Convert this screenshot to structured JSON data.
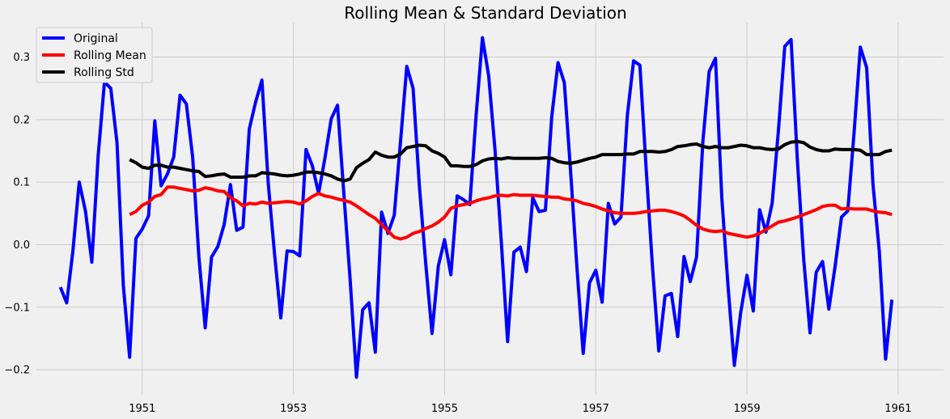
{
  "chart_data": {
    "type": "line",
    "title": "Rolling Mean & Standard Deviation",
    "xlabel": "",
    "ylabel": "",
    "x_start": 1949.9166,
    "x_step": 0.083333,
    "xlim": [
      1949.6,
      1961.6
    ],
    "ylim": [
      -0.24,
      0.355
    ],
    "xticks": [
      1951,
      1953,
      1955,
      1957,
      1959,
      1961
    ],
    "xtick_labels": [
      "1951",
      "1953",
      "1955",
      "1957",
      "1959",
      "1961"
    ],
    "yticks": [
      -0.2,
      -0.1,
      0.0,
      0.1,
      0.2,
      0.3
    ],
    "ytick_labels": [
      "−0.2",
      "−0.1",
      "0.0",
      "0.1",
      "0.2",
      "0.3"
    ],
    "grid": true,
    "legend_position": "top-left",
    "series": [
      {
        "name": "Original",
        "color": "#0000ff",
        "values": [
          -0.068,
          -0.093,
          -0.01,
          0.1,
          0.053,
          -0.028,
          0.142,
          0.26,
          0.25,
          0.163,
          -0.065,
          -0.18,
          0.01,
          0.025,
          0.046,
          0.198,
          0.094,
          0.113,
          0.14,
          0.239,
          0.225,
          0.14,
          -0.02,
          -0.133,
          -0.02,
          -0.003,
          0.032,
          0.096,
          0.023,
          0.028,
          0.185,
          0.228,
          0.263,
          0.098,
          -0.015,
          -0.117,
          -0.01,
          -0.011,
          -0.018,
          0.152,
          0.126,
          0.082,
          0.138,
          0.201,
          0.223,
          0.082,
          -0.056,
          -0.212,
          -0.104,
          -0.093,
          -0.172,
          0.052,
          0.018,
          0.047,
          0.164,
          0.285,
          0.25,
          0.093,
          -0.03,
          -0.142,
          -0.034,
          0.008,
          -0.048,
          0.078,
          0.072,
          0.064,
          0.207,
          0.331,
          0.27,
          0.152,
          0.005,
          -0.155,
          -0.012,
          -0.004,
          -0.043,
          0.075,
          0.053,
          0.055,
          0.204,
          0.291,
          0.259,
          0.118,
          -0.035,
          -0.174,
          -0.061,
          -0.041,
          -0.092,
          0.066,
          0.033,
          0.044,
          0.206,
          0.294,
          0.287,
          0.12,
          -0.035,
          -0.17,
          -0.082,
          -0.078,
          -0.147,
          -0.019,
          -0.059,
          -0.02,
          0.165,
          0.277,
          0.298,
          0.075,
          -0.068,
          -0.193,
          -0.109,
          -0.049,
          -0.106,
          0.056,
          0.02,
          0.066,
          0.183,
          0.317,
          0.328,
          0.135,
          -0.023,
          -0.141,
          -0.044,
          -0.027,
          -0.103,
          -0.034,
          0.044,
          0.054,
          0.178,
          0.316,
          0.283,
          0.097,
          -0.01,
          -0.183,
          -0.088
        ]
      },
      {
        "name": "Rolling Mean",
        "color": "#ff0000",
        "values": [
          null,
          null,
          null,
          null,
          null,
          null,
          null,
          null,
          null,
          null,
          null,
          0.048,
          0.053,
          0.063,
          0.068,
          0.077,
          0.08,
          0.092,
          0.092,
          0.09,
          0.088,
          0.086,
          0.087,
          0.091,
          0.089,
          0.086,
          0.085,
          0.075,
          0.07,
          0.062,
          0.066,
          0.065,
          0.068,
          0.066,
          0.067,
          0.068,
          0.069,
          0.068,
          0.065,
          0.07,
          0.077,
          0.082,
          0.078,
          0.076,
          0.073,
          0.071,
          0.068,
          0.062,
          0.055,
          0.048,
          0.042,
          0.032,
          0.022,
          0.012,
          0.009,
          0.012,
          0.018,
          0.021,
          0.026,
          0.03,
          0.036,
          0.044,
          0.058,
          0.062,
          0.064,
          0.066,
          0.07,
          0.073,
          0.075,
          0.078,
          0.079,
          0.078,
          0.08,
          0.079,
          0.079,
          0.079,
          0.078,
          0.077,
          0.076,
          0.076,
          0.073,
          0.072,
          0.07,
          0.066,
          0.064,
          0.061,
          0.057,
          0.054,
          0.051,
          0.05,
          0.05,
          0.05,
          0.051,
          0.053,
          0.054,
          0.055,
          0.055,
          0.053,
          0.05,
          0.046,
          0.039,
          0.031,
          0.025,
          0.022,
          0.021,
          0.022,
          0.018,
          0.016,
          0.014,
          0.012,
          0.014,
          0.018,
          0.024,
          0.03,
          0.036,
          0.038,
          0.041,
          0.044,
          0.048,
          0.052,
          0.056,
          0.061,
          0.063,
          0.063,
          0.057,
          0.058,
          0.057,
          0.057,
          0.057,
          0.054,
          0.052,
          0.051,
          0.048
        ]
      },
      {
        "name": "Rolling Std",
        "color": "#000000",
        "values": [
          null,
          null,
          null,
          null,
          null,
          null,
          null,
          null,
          null,
          null,
          null,
          0.136,
          0.131,
          0.124,
          0.122,
          0.127,
          0.127,
          0.124,
          0.124,
          0.122,
          0.12,
          0.118,
          0.117,
          0.109,
          0.11,
          0.112,
          0.113,
          0.108,
          0.108,
          0.108,
          0.11,
          0.11,
          0.115,
          0.114,
          0.113,
          0.111,
          0.11,
          0.111,
          0.113,
          0.116,
          0.116,
          0.115,
          0.113,
          0.11,
          0.105,
          0.102,
          0.105,
          0.123,
          0.13,
          0.136,
          0.148,
          0.143,
          0.14,
          0.14,
          0.145,
          0.155,
          0.157,
          0.159,
          0.158,
          0.15,
          0.146,
          0.14,
          0.126,
          0.126,
          0.125,
          0.125,
          0.128,
          0.134,
          0.137,
          0.138,
          0.137,
          0.139,
          0.138,
          0.138,
          0.138,
          0.138,
          0.138,
          0.139,
          0.138,
          0.133,
          0.131,
          0.13,
          0.132,
          0.135,
          0.138,
          0.14,
          0.144,
          0.144,
          0.144,
          0.144,
          0.145,
          0.145,
          0.149,
          0.149,
          0.149,
          0.148,
          0.149,
          0.152,
          0.157,
          0.158,
          0.16,
          0.161,
          0.157,
          0.155,
          0.157,
          0.155,
          0.155,
          0.157,
          0.159,
          0.158,
          0.155,
          0.155,
          0.153,
          0.152,
          0.153,
          0.16,
          0.164,
          0.165,
          0.163,
          0.156,
          0.152,
          0.15,
          0.15,
          0.153,
          0.152,
          0.152,
          0.152,
          0.151,
          0.144,
          0.144,
          0.144,
          0.149,
          0.151
        ]
      }
    ]
  }
}
